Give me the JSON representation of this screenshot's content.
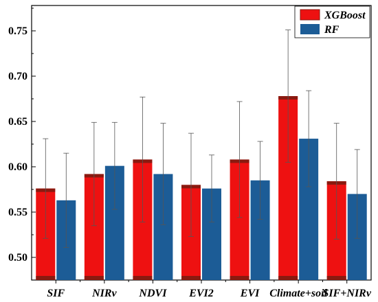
{
  "chart_data": {
    "type": "bar",
    "categories": [
      "SIF",
      "NIRv",
      "NDVI",
      "EVI2",
      "EVI",
      "Climate+soil",
      "SIF+NIRv"
    ],
    "series": [
      {
        "name": "XGBoost",
        "color": "#ee1111",
        "values": [
          0.576,
          0.592,
          0.608,
          0.58,
          0.608,
          0.678,
          0.584
        ],
        "err_upper": [
          0.631,
          0.649,
          0.677,
          0.637,
          0.672,
          0.751,
          0.648
        ],
        "err_lower": [
          0.521,
          0.535,
          0.539,
          0.523,
          0.544,
          0.605,
          0.52
        ]
      },
      {
        "name": "RF",
        "color": "#1c5c96",
        "values": [
          0.563,
          0.601,
          0.592,
          0.576,
          0.585,
          0.631,
          0.57
        ],
        "err_upper": [
          0.615,
          0.649,
          0.648,
          0.613,
          0.628,
          0.684,
          0.619
        ],
        "err_lower": [
          0.511,
          0.553,
          0.536,
          0.539,
          0.542,
          0.578,
          0.521
        ]
      }
    ],
    "yticks": [
      "0.50",
      "0.55",
      "0.60",
      "0.65",
      "0.70",
      "0.75"
    ],
    "ylim": [
      0.475,
      0.778
    ],
    "legend_position": "top-right",
    "title": "",
    "xlabel": "",
    "ylabel": ""
  }
}
